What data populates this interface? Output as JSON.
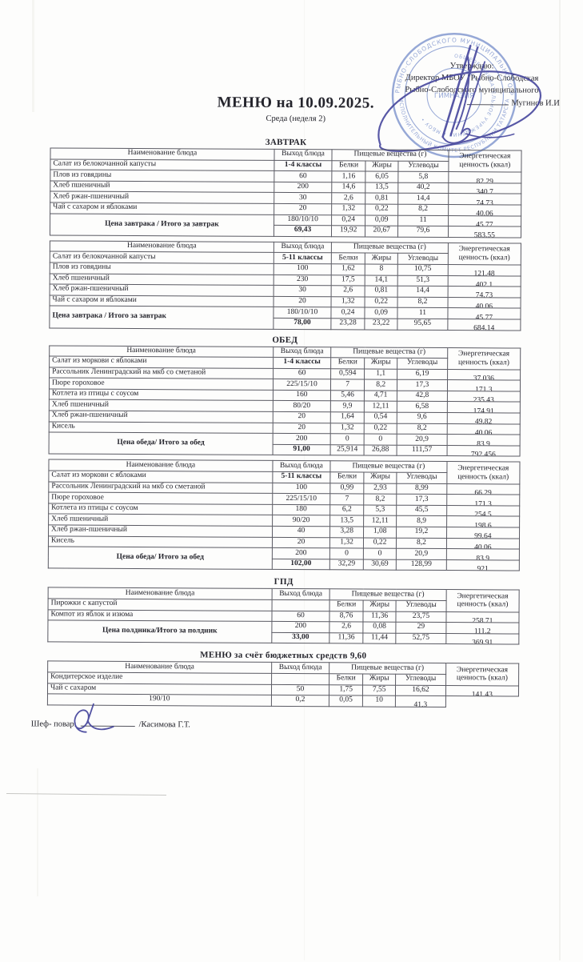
{
  "doc": {
    "title": "МЕНЮ на 10.09.2025.",
    "subtitle": "Среда (неделя 2)"
  },
  "approval": {
    "line1": "Утверждаю:",
    "line2": "Директор МБОУ \"Рыбно-Слободская",
    "line3": "Рыбно-Слободского муниципального",
    "line4": "Мугинов И.И"
  },
  "stamp": {
    "ring_outer_top": "РЫБНО-СЛОБОДСКОГО МУНИЦИПАЛЬНОГО РАЙОНА",
    "ring_outer_bottom": "ИСПОЛНИТЕЛЬНЫЙ КОМИТЕТ РЕСПУБЛИКИ ТАТАРСТАН",
    "ring_middle": "ОБЩЕОБРАЗОВАТЕЛЬНОЕ УЧРЕЖДЕНИЕ • МБОУ •",
    "center": "ГИМНАЗИЯ",
    "color": "#7d93cd"
  },
  "table_headers": {
    "name": "Наименование блюда",
    "out": "Выход блюда",
    "nutrients": "Пищевые вещества (г)",
    "protein": "Белки",
    "fat": "Жиры",
    "carbs": "Углеводы",
    "energy": "Энергетическая ценность (ккал)"
  },
  "tables": [
    {
      "section": "ЗАВТРАК",
      "section_gap": "",
      "first_dish": "Салат из белокочанной капусты",
      "class_label": "1-4 классы",
      "rows": [
        {
          "name": "Плов из говядины",
          "v": [
            "60",
            "1,16",
            "6,05",
            "5,8",
            "82,29"
          ]
        },
        {
          "name": "Хлеб пшеничный",
          "v": [
            "200",
            "14,6",
            "13,5",
            "40,2",
            "340,7"
          ]
        },
        {
          "name": "Хлеб ржан-пшеничный",
          "v": [
            "30",
            "2,6",
            "0,81",
            "14,4",
            "74,73"
          ]
        },
        {
          "name": "Чай с сахаром и яблоками",
          "v": [
            "20",
            "1,32",
            "0,22",
            "8,2",
            "40,06"
          ]
        },
        {
          "label": "Цена завтрака / Итого за завтрак",
          "label_align": "center",
          "v": [
            "180/10/10",
            "0,24",
            "0,09",
            "11",
            "45,77"
          ]
        },
        {
          "no_name": true,
          "bold_out": true,
          "v": [
            "69,43",
            "19,92",
            "20,67",
            "79,6",
            "583,55"
          ]
        }
      ]
    },
    {
      "section": "",
      "section_gap": "",
      "first_dish": "Салат из белокочанной капусты",
      "class_label": "5-11 классы",
      "rows": [
        {
          "name": "Плов из говядины",
          "v": [
            "100",
            "1,62",
            "8",
            "10,75",
            "121,48"
          ]
        },
        {
          "name": "Хлеб пшеничный",
          "v": [
            "230",
            "17,5",
            "14,1",
            "51,3",
            "402,1"
          ]
        },
        {
          "name": "Хлеб ржан-пшеничный",
          "v": [
            "30",
            "2,6",
            "0,81",
            "14,4",
            "74,73"
          ]
        },
        {
          "name": "Чай с сахаром и яблоками",
          "v": [
            "20",
            "1,32",
            "0,22",
            "8,2",
            "40,06"
          ]
        },
        {
          "label": "Цена завтрака / Итого за завтрак",
          "label_align": "left",
          "v": [
            "180/10/10",
            "0,24",
            "0,09",
            "11",
            "45,77"
          ]
        },
        {
          "no_name": true,
          "bold_out": true,
          "v": [
            "78,00",
            "23,28",
            "23,22",
            "95,65",
            "684,14"
          ]
        }
      ]
    },
    {
      "section": "ОБЕД",
      "section_gap": "gap1",
      "first_dish": "Салат из моркови с яблоками",
      "class_label": "1-4 классы",
      "rows": [
        {
          "name": "Рассольник Ленинградский на мкб со сметаной",
          "v": [
            "60",
            "0,594",
            "1,1",
            "6,19",
            "37,036"
          ]
        },
        {
          "name": "Пюре гороховое",
          "v": [
            "225/15/10",
            "7",
            "8,2",
            "17,3",
            "171,3"
          ]
        },
        {
          "name": "Котлета из птицы с соусом",
          "v": [
            "160",
            "5,46",
            "4,71",
            "42,8",
            "235,43"
          ]
        },
        {
          "name": "Хлеб пшеничный",
          "v": [
            "80/20",
            "9,9",
            "12,11",
            "6,58",
            "174,91"
          ]
        },
        {
          "name": "Хлеб ржан-пшеничный",
          "v": [
            "20",
            "1,64",
            "0,54",
            "9,6",
            "49,82"
          ]
        },
        {
          "name": "Кисель",
          "v": [
            "20",
            "1,32",
            "0,22",
            "8,2",
            "40,06"
          ]
        },
        {
          "label": "Цена обеда/ Итого за обед",
          "label_align": "center",
          "v": [
            "200",
            "0",
            "0",
            "20,9",
            "83,9"
          ]
        },
        {
          "no_name": true,
          "bold_out": true,
          "v": [
            "91,00",
            "25,914",
            "26,88",
            "111,57",
            "792,456"
          ]
        }
      ]
    },
    {
      "section": "",
      "section_gap": "",
      "first_dish": "Салат из моркови с яблоками",
      "class_label": "5-11 классы",
      "rows": [
        {
          "name": "Рассольник Ленинградский на мкб со сметаной",
          "v": [
            "100",
            "0,99",
            "2,93",
            "8,99",
            "66,29"
          ]
        },
        {
          "name": "Пюре гороховое",
          "v": [
            "225/15/10",
            "7",
            "8,2",
            "17,3",
            "171,3"
          ]
        },
        {
          "name": "Котлета из птицы с соусом",
          "v": [
            "180",
            "6,2",
            "5,3",
            "45,5",
            "254,5"
          ]
        },
        {
          "name": "Хлеб пшеничный",
          "v": [
            "90/20",
            "13,5",
            "12,11",
            "8,9",
            "198,6"
          ]
        },
        {
          "name": "Хлеб ржан-пшеничный",
          "v": [
            "40",
            "3,28",
            "1,08",
            "19,2",
            "99,64"
          ]
        },
        {
          "name": "Кисель",
          "v": [
            "20",
            "1,32",
            "0,22",
            "8,2",
            "40,06"
          ]
        },
        {
          "label": "Цена обеда/ Итого за обед",
          "label_align": "center",
          "v": [
            "200",
            "0",
            "0",
            "20,9",
            "83,9"
          ]
        },
        {
          "no_name": true,
          "bold_out": true,
          "v": [
            "102,00",
            "32,29",
            "30,69",
            "128,99",
            "921"
          ]
        }
      ]
    },
    {
      "section": "ГПД",
      "section_gap": "gap2",
      "first_dish": "Пирожки с капустой",
      "class_label": "",
      "rows": [
        {
          "name": "Компот из яблок и изюма",
          "v": [
            "60",
            "8,76",
            "11,36",
            "23,75",
            "258,71"
          ]
        },
        {
          "label": "Цена полдника/Итого за полдник",
          "label_align": "center",
          "v": [
            "200",
            "2,6",
            "0,08",
            "29",
            "111,2"
          ]
        },
        {
          "no_name": true,
          "bold_out": true,
          "v": [
            "33,00",
            "11,36",
            "11,44",
            "52,75",
            "369,91"
          ]
        }
      ]
    },
    {
      "section": "МЕНЮ за счёт бюджетных средств 9,60",
      "section_gap": "gap2",
      "first_dish": "Кондитерское изделие",
      "class_label": "",
      "rows": [
        {
          "name": "Чай с сахаром",
          "v": [
            "50",
            "1,75",
            "7,55",
            "16,62",
            "141,43"
          ]
        },
        {
          "no_name": true,
          "v": [
            "190/10",
            "0,2",
            "0,05",
            "10",
            "41,3"
          ]
        }
      ]
    }
  ],
  "footer": {
    "chef_label": "Шеф- повар:",
    "chef_name": "/Касимова Г.Т."
  },
  "colors": {
    "stamp_blue": "#7d93cd",
    "signature_ink": "#41419a",
    "table_border": "#5a5a63"
  }
}
